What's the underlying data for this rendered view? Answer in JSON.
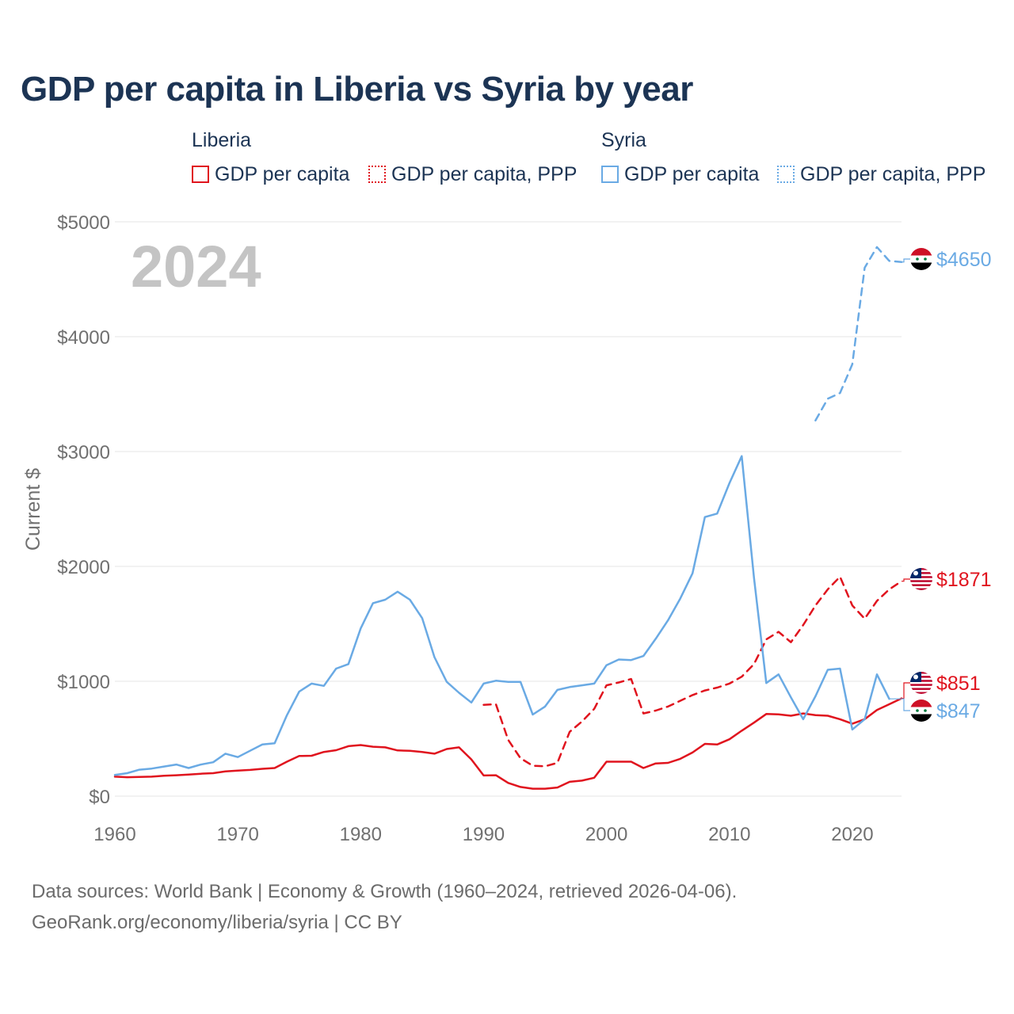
{
  "title": "GDP per capita in Liberia vs Syria by year",
  "legend": {
    "liberia": {
      "title": "Liberia",
      "gdp": "GDP per capita",
      "ppp": "GDP per capita, PPP"
    },
    "syria": {
      "title": "Syria",
      "gdp": "GDP per capita",
      "ppp": "GDP per capita, PPP"
    }
  },
  "colors": {
    "liberia": "#e0141e",
    "syria": "#6aaae4",
    "title": "#1c3454",
    "grid": "#e6e6e6",
    "axis_text": "#707070",
    "year_watermark": "#c4c4c4"
  },
  "footer": {
    "line1": "Data sources: World Bank | Economy & Growth (1960–2024, retrieved 2026-04-06).",
    "line2": "GeoRank.org/economy/liberia/syria | CC BY"
  },
  "chart_data": {
    "type": "line",
    "title": "GDP per capita in Liberia vs Syria by year",
    "xlabel": "",
    "ylabel": "Current $",
    "xlim": [
      1960,
      2024
    ],
    "ylim": [
      0,
      5000
    ],
    "xticks": [
      1960,
      1970,
      1980,
      1990,
      2000,
      2010,
      2020
    ],
    "yticks": [
      0,
      1000,
      2000,
      3000,
      4000,
      5000
    ],
    "ytick_labels": [
      "$0",
      "$1000",
      "$2000",
      "$3000",
      "$4000",
      "$5000"
    ],
    "year_label": "2024",
    "grid": true,
    "series": [
      {
        "name": "Liberia GDP per capita",
        "country": "liberia",
        "style": "solid",
        "end_label": "$851",
        "x": [
          1960,
          1961,
          1962,
          1963,
          1964,
          1965,
          1966,
          1967,
          1968,
          1969,
          1970,
          1971,
          1972,
          1973,
          1974,
          1975,
          1976,
          1977,
          1978,
          1979,
          1980,
          1981,
          1982,
          1983,
          1984,
          1985,
          1986,
          1987,
          1988,
          1989,
          1990,
          1991,
          1992,
          1993,
          1994,
          1995,
          1996,
          1997,
          1998,
          1999,
          2000,
          2001,
          2002,
          2003,
          2004,
          2005,
          2006,
          2007,
          2008,
          2009,
          2010,
          2011,
          2012,
          2013,
          2014,
          2015,
          2016,
          2017,
          2018,
          2019,
          2020,
          2021,
          2022,
          2023,
          2024
        ],
        "y": [
          170,
          165,
          167,
          170,
          178,
          182,
          188,
          195,
          200,
          215,
          222,
          228,
          238,
          245,
          300,
          350,
          352,
          385,
          400,
          435,
          445,
          430,
          425,
          398,
          395,
          385,
          370,
          410,
          425,
          320,
          180,
          182,
          115,
          80,
          65,
          65,
          75,
          125,
          135,
          160,
          300,
          300,
          300,
          245,
          285,
          290,
          325,
          380,
          455,
          450,
          495,
          570,
          640,
          715,
          712,
          700,
          720,
          705,
          700,
          670,
          630,
          670,
          750,
          800,
          851
        ]
      },
      {
        "name": "Liberia GDP per capita, PPP",
        "country": "liberia",
        "style": "dashed",
        "end_label": "$1871",
        "x": [
          1990,
          1991,
          1992,
          1993,
          1994,
          1995,
          1996,
          1997,
          1998,
          1999,
          2000,
          2001,
          2002,
          2003,
          2004,
          2005,
          2006,
          2007,
          2008,
          2009,
          2010,
          2011,
          2012,
          2013,
          2014,
          2015,
          2016,
          2017,
          2018,
          2019,
          2020,
          2021,
          2022,
          2023,
          2024
        ],
        "y": [
          795,
          800,
          490,
          330,
          265,
          260,
          290,
          560,
          650,
          760,
          965,
          990,
          1020,
          720,
          745,
          780,
          830,
          880,
          920,
          945,
          980,
          1040,
          1150,
          1365,
          1430,
          1340,
          1490,
          1660,
          1800,
          1910,
          1660,
          1545,
          1700,
          1800,
          1871
        ]
      },
      {
        "name": "Syria GDP per capita",
        "country": "syria",
        "style": "solid",
        "end_label": "$847",
        "x": [
          1960,
          1961,
          1962,
          1963,
          1964,
          1965,
          1966,
          1967,
          1968,
          1969,
          1970,
          1971,
          1972,
          1973,
          1974,
          1975,
          1976,
          1977,
          1978,
          1979,
          1980,
          1981,
          1982,
          1983,
          1984,
          1985,
          1986,
          1987,
          1988,
          1989,
          1990,
          1991,
          1992,
          1993,
          1994,
          1995,
          1996,
          1997,
          1998,
          1999,
          2000,
          2001,
          2002,
          2003,
          2004,
          2005,
          2006,
          2007,
          2008,
          2009,
          2010,
          2011,
          2012,
          2013,
          2014,
          2015,
          2016,
          2017,
          2018,
          2019,
          2020,
          2021,
          2022,
          2023
        ],
        "y": [
          185,
          200,
          230,
          240,
          258,
          275,
          245,
          275,
          295,
          370,
          340,
          395,
          450,
          460,
          705,
          910,
          980,
          960,
          1110,
          1150,
          1460,
          1680,
          1710,
          1780,
          1710,
          1550,
          1210,
          995,
          900,
          815,
          980,
          1005,
          995,
          995,
          710,
          780,
          925,
          950,
          965,
          980,
          1140,
          1190,
          1185,
          1220,
          1370,
          1530,
          1720,
          1940,
          2430,
          2460,
          2725,
          2960,
          1900,
          985,
          1060,
          860,
          670,
          870,
          1100,
          1110,
          580,
          670,
          1060,
          847
        ]
      },
      {
        "name": "Syria GDP per capita, PPP",
        "country": "syria",
        "style": "dashed",
        "end_label": "$4650",
        "x": [
          2017,
          2018,
          2019,
          2020,
          2021,
          2022,
          2023,
          2024
        ],
        "y": [
          3270,
          3460,
          3510,
          3760,
          4600,
          4780,
          4660,
          4650
        ]
      }
    ]
  }
}
